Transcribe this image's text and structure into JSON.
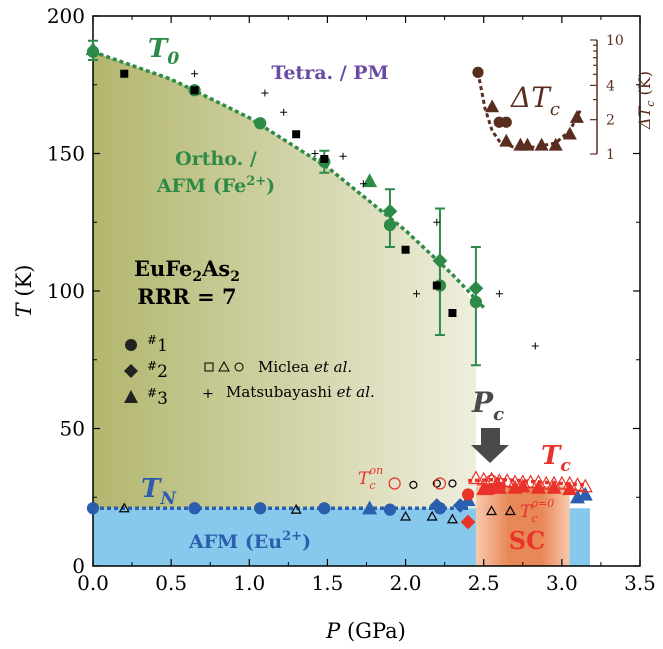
{
  "chart_data": {
    "type": "scatter",
    "xlabel": "P (GPa)",
    "ylabel": "T (K)",
    "xlim": [
      0,
      3.5
    ],
    "ylim": [
      0,
      200
    ],
    "x_ticks": [
      "0.0",
      "0.5",
      "1.0",
      "1.5",
      "2.0",
      "2.5",
      "3.0",
      "3.5"
    ],
    "y_ticks": [
      "0",
      "50",
      "100",
      "150",
      "200"
    ],
    "region_labels": {
      "tetra": "Tetra. / PM",
      "ortho_1": "Ortho. /",
      "ortho_2": "AFM (Fe",
      "ortho_2_sup": "2+",
      "ortho_2_end": ")",
      "afm_eu": "AFM (Eu",
      "afm_eu_sup": "2+",
      "afm_eu_end": ")",
      "sc": "SC"
    },
    "sample": {
      "name_1": "EuFe",
      "name_sub1": "2",
      "name_2": "As",
      "name_sub2": "2",
      "rrr": "RRR = 7"
    },
    "curve_labels": {
      "t0": "T",
      "t0_sub": "0",
      "tn": "T",
      "tn_sub": "N",
      "tc": "T",
      "tc_sub": "c",
      "pc": "P",
      "pc_sub": "c",
      "tc_on": "T",
      "tc_on_sub": "c",
      "tc_on_sup": "on",
      "tc_rho": "T",
      "tc_rho_sub": "c",
      "tc_rho_sup": "ρ=0"
    },
    "legend": {
      "sample1": "#1",
      "sample2": "#2",
      "sample3": "#3",
      "miclea": "Miclea et al.",
      "matsubayashi": "Matsubayashi et al."
    },
    "inset": {
      "label": "ΔT",
      "label_sub": "c",
      "ylabel": "ΔT",
      "ylabel_sub": "c",
      "ylabel_unit": " (K)",
      "ticks": [
        "1",
        "2",
        "4",
        "10"
      ],
      "scale": "log",
      "ylim": [
        1,
        10
      ],
      "xlim": [
        2.4,
        3.15
      ],
      "series": [
        {
          "marker": "circle",
          "x": [
            2.4,
            2.55,
            2.6
          ],
          "y": [
            5.2,
            1.9,
            1.9
          ]
        },
        {
          "marker": "triangle",
          "x": [
            2.5,
            2.6,
            2.7,
            2.75,
            2.85,
            2.95,
            3.05,
            3.1
          ],
          "y": [
            2.6,
            1.3,
            1.2,
            1.2,
            1.2,
            1.2,
            1.5,
            2.1
          ]
        }
      ],
      "fit": {
        "x": [
          2.4,
          2.45,
          2.5,
          2.55,
          2.65,
          2.8,
          2.95,
          3.05,
          3.13
        ],
        "y": [
          5.2,
          2.5,
          1.6,
          1.3,
          1.15,
          1.15,
          1.25,
          1.6,
          2.5
        ]
      }
    },
    "series": [
      {
        "name": "T0 #1",
        "marker": "circle",
        "color": "#2e8b47",
        "x": [
          0.0,
          0.65,
          1.07,
          1.48,
          1.9,
          2.22,
          2.45
        ],
        "y": [
          187,
          173,
          161,
          147,
          124,
          102,
          96
        ]
      },
      {
        "name": "T0 #2",
        "marker": "diamond",
        "color": "#2e8b47",
        "x": [
          1.9,
          2.22,
          2.45
        ],
        "y": [
          129,
          111,
          101
        ]
      },
      {
        "name": "T0 #3",
        "marker": "triangle",
        "color": "#2e8b47",
        "x": [
          0.0,
          1.77
        ],
        "y": [
          188,
          140
        ]
      },
      {
        "name": "T0 error bars",
        "color": "#2e8b47",
        "x": [
          0.0,
          1.48,
          1.9,
          2.22,
          2.45
        ],
        "y_low": [
          184,
          143,
          116,
          84,
          73
        ],
        "y_high": [
          191,
          151,
          137,
          130,
          116
        ]
      },
      {
        "name": "Miclea T0",
        "marker": "square",
        "color": "#000000",
        "x": [
          0.2,
          0.65,
          1.3,
          1.48,
          2.0,
          2.2,
          2.3
        ],
        "y": [
          179,
          173,
          157,
          148,
          115,
          102,
          92
        ]
      },
      {
        "name": "Matsubayashi",
        "marker": "plus",
        "color": "#000000",
        "x": [
          0.65,
          1.1,
          1.22,
          1.3,
          1.42,
          1.6,
          1.73,
          2.07,
          2.2,
          2.6,
          2.83
        ],
        "y": [
          179,
          172,
          165,
          157,
          150,
          149,
          139,
          99,
          125,
          99,
          80
        ]
      },
      {
        "name": "TN #1",
        "marker": "circle",
        "color": "#2b5fae",
        "x": [
          0.0,
          0.65,
          1.07,
          1.48,
          1.9,
          2.22
        ],
        "y": [
          21,
          21,
          21,
          21,
          20.5,
          21
        ]
      },
      {
        "name": "TN #2",
        "marker": "diamond",
        "color": "#2b5fae",
        "x": [
          2.2,
          2.35
        ],
        "y": [
          22,
          22
        ]
      },
      {
        "name": "TN #3",
        "marker": "triangle",
        "color": "#2b5fae",
        "x": [
          1.77,
          2.4,
          3.1,
          3.15
        ],
        "y": [
          21,
          24,
          25,
          26
        ]
      },
      {
        "name": "Miclea TN",
        "marker": "triangle-open",
        "color": "#000000",
        "x": [
          0.2,
          1.3,
          2.0,
          2.17,
          2.3,
          2.55,
          2.67
        ],
        "y": [
          21,
          20.5,
          18,
          18,
          17,
          20,
          20
        ]
      },
      {
        "name": "Miclea Tc",
        "marker": "circle-open",
        "color": "#000000",
        "x": [
          2.05,
          2.2,
          2.3
        ],
        "y": [
          29.5,
          30,
          30
        ]
      },
      {
        "name": "Tc onset",
        "marker": "triangle-open",
        "color": "#e8322a",
        "x": [
          2.45,
          2.5,
          2.55,
          2.6,
          2.65,
          2.7,
          2.75,
          2.8,
          2.85,
          2.9,
          2.95,
          3.0,
          3.05,
          3.1,
          3.15
        ],
        "y": [
          32,
          31.5,
          31.5,
          31,
          31,
          30.5,
          30.5,
          30.5,
          30.5,
          30,
          30,
          30,
          30,
          29.5,
          29
        ]
      },
      {
        "name": "Tc onset circles",
        "marker": "circle-open",
        "color": "#e8322a",
        "x": [
          1.93,
          2.22,
          2.55,
          2.6
        ],
        "y": [
          30,
          30,
          31,
          30
        ]
      },
      {
        "name": "Tc zero resistance",
        "marker": "triangle",
        "color": "#e8322a",
        "x": [
          2.5,
          2.6,
          2.7,
          2.75,
          2.85,
          2.95,
          3.05
        ],
        "y": [
          28,
          28.5,
          28.5,
          29,
          28.5,
          28.5,
          28
        ]
      },
      {
        "name": "Tc zero circles",
        "marker": "circle",
        "color": "#e8322a",
        "x": [
          2.4,
          2.55,
          2.6
        ],
        "y": [
          26,
          28,
          28.5
        ]
      },
      {
        "name": "Tc zero diamond",
        "marker": "diamond",
        "color": "#e8322a",
        "x": [
          2.4
        ],
        "y": [
          16
        ]
      }
    ],
    "fits": {
      "t0": {
        "color": "#2e8b47",
        "x": [
          0.0,
          0.5,
          1.0,
          1.5,
          2.0,
          2.3,
          2.5
        ],
        "y": [
          187,
          177,
          163,
          145,
          122,
          106,
          94
        ]
      },
      "tn": {
        "color": "#2b5fae",
        "x": [
          0.0,
          2.4
        ],
        "y": [
          21,
          21
        ]
      },
      "tc": {
        "color": "#e8322a",
        "x": [
          2.4,
          2.6,
          3.0,
          3.15
        ],
        "y": [
          31,
          31.5,
          30,
          29.5
        ]
      }
    },
    "regions": {
      "ortho_upper": {
        "color": "#b6b978",
        "pmax": 2.45
      },
      "afm_eu": {
        "color": "#87c9ec",
        "pmax": 3.18,
        "tmax": 21
      },
      "sc": {
        "color": "#e99465",
        "pmin": 2.45,
        "pmax": 3.05,
        "tmax": 29
      }
    },
    "arrow_color": "#4a4a4a"
  }
}
